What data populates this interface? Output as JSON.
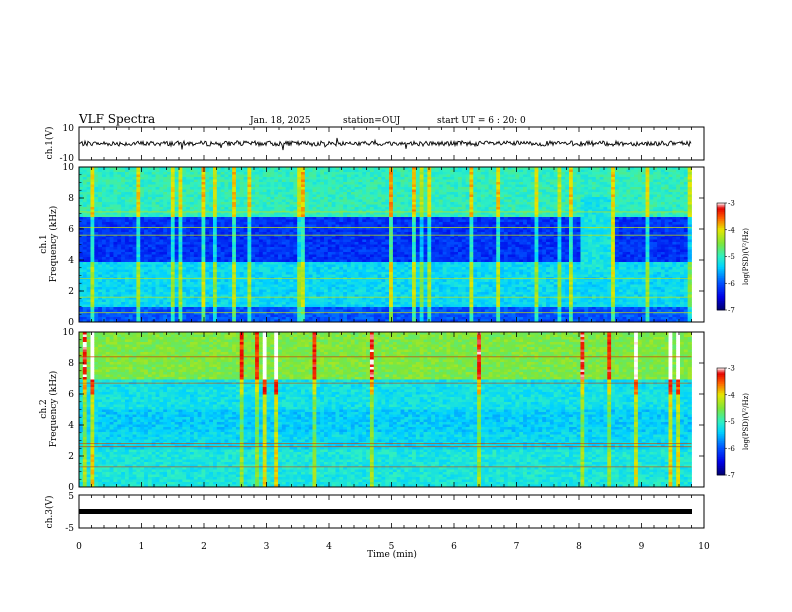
{
  "header": {
    "title": "VLF Spectra",
    "date": "Jan. 18, 2025",
    "station": "station=OUJ",
    "start": "start UT =  6 : 20: 0"
  },
  "chart_data": [
    {
      "type": "line",
      "panel": "ch1-waveform",
      "ylabel": "ch.1(V)",
      "ylim": [
        -10,
        10
      ],
      "yticks": [
        "10",
        "-10"
      ],
      "baseline": 0,
      "noise_amplitude": 1.5,
      "xlim": [
        0,
        10
      ],
      "end_x": 9.8
    },
    {
      "type": "heatmap",
      "panel": "ch1-spectrogram",
      "ylabel": "ch.1 Frequency (kHz)",
      "ylim": [
        0,
        10
      ],
      "yticks": [
        "0",
        "2",
        "4",
        "6",
        "8",
        "10"
      ],
      "xlim": [
        0,
        10
      ],
      "end_x": 9.8,
      "colorbar": {
        "label": "log(PSD)(V²/Hz)",
        "ticks": [
          "-3",
          "-4",
          "-5",
          "-6",
          "-7"
        ],
        "range": [
          -7,
          -3
        ]
      },
      "features": {
        "low_power_band_khz": [
          3.8,
          6.8
        ],
        "quiet_interval_min": [
          8.0,
          8.6
        ],
        "tone_lines_khz": [
          7.1,
          6.1,
          5.6,
          2.8,
          1.6,
          0.6
        ]
      }
    },
    {
      "type": "heatmap",
      "panel": "ch2-spectrogram",
      "ylabel": "ch.2 Frequency (kHz)",
      "ylim": [
        0,
        10
      ],
      "yticks": [
        "0",
        "2",
        "4",
        "6",
        "8",
        "10"
      ],
      "xlim": [
        0,
        10
      ],
      "end_x": 9.8,
      "colorbar": {
        "label": "log(PSD)(V²/Hz)",
        "ticks": [
          "-3",
          "-4",
          "-5",
          "-6",
          "-7"
        ],
        "range": [
          -7,
          -3
        ]
      },
      "features": {
        "high_power_band_khz": [
          7.0,
          10.0
        ],
        "tone_lines_khz": [
          8.4,
          6.7,
          2.8,
          2.6,
          1.3
        ]
      }
    },
    {
      "type": "line",
      "panel": "ch3-waveform",
      "ylabel": "ch.3(V)",
      "ylim": [
        -5,
        5
      ],
      "yticks": [
        "5",
        "0",
        "-5"
      ],
      "baseline": -0.5,
      "xlim": [
        0,
        10
      ],
      "end_x": 9.8
    }
  ],
  "xaxis": {
    "label": "Time (min)",
    "ticks": [
      "0",
      "1",
      "2",
      "3",
      "4",
      "5",
      "6",
      "7",
      "8",
      "9",
      "10"
    ]
  },
  "colors": {
    "colormap": [
      "#00006e",
      "#0000e6",
      "#0050ff",
      "#00d2ff",
      "#30f0c0",
      "#7ce63c",
      "#e6e600",
      "#ff6000",
      "#e60000",
      "#ffffff"
    ]
  }
}
